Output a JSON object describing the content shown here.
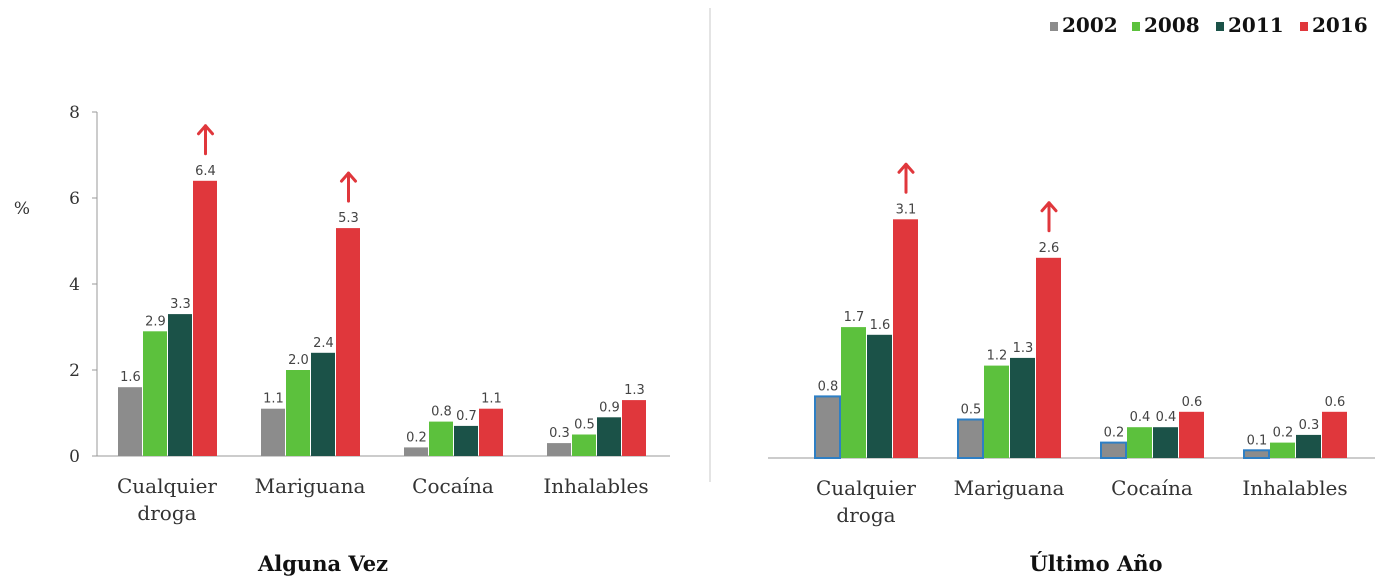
{
  "legend": [
    {
      "label": "2002",
      "color": "#8c8c8c"
    },
    {
      "label": "2008",
      "color": "#5cc13d"
    },
    {
      "label": "2011",
      "color": "#1b5248"
    },
    {
      "label": "2016",
      "color": "#e0373c"
    }
  ],
  "chart_data": [
    {
      "type": "bar",
      "title": "Alguna Vez",
      "ylabel": "%",
      "ylim": [
        0,
        8
      ],
      "yticks": [
        "0",
        "2",
        "4",
        "6",
        "8"
      ],
      "categories": [
        "Cualquier droga",
        "Mariguana",
        "Cocaína",
        "Inhalables"
      ],
      "category_lines": [
        [
          "Cualquier",
          "droga"
        ],
        [
          "Mariguana"
        ],
        [
          "Cocaína"
        ],
        [
          "Inhalables"
        ]
      ],
      "series": [
        {
          "name": "2002",
          "values": [
            1.6,
            1.1,
            0.2,
            0.3
          ],
          "labels": [
            "1.6",
            "1.1",
            "0.2",
            "0.3"
          ]
        },
        {
          "name": "2008",
          "values": [
            2.9,
            2.0,
            0.8,
            0.5
          ],
          "labels": [
            "2.9",
            "2.0",
            "0.8",
            "0.5"
          ]
        },
        {
          "name": "2011",
          "values": [
            3.3,
            2.4,
            0.7,
            0.9
          ],
          "labels": [
            "3.3",
            "2.4",
            "0.7",
            "0.9"
          ]
        },
        {
          "name": "2016",
          "values": [
            6.4,
            5.3,
            1.1,
            1.3
          ],
          "labels": [
            "6.4",
            "5.3",
            "1.1",
            "1.3"
          ]
        }
      ],
      "increase_arrows": [
        "Cualquier droga",
        "Mariguana"
      ]
    },
    {
      "type": "bar",
      "title": "Último Año",
      "ylim": [
        0,
        4.5
      ],
      "categories": [
        "Cualquier droga",
        "Mariguana",
        "Cocaína",
        "Inhalables"
      ],
      "category_lines": [
        [
          "Cualquier",
          "droga"
        ],
        [
          "Mariguana"
        ],
        [
          "Cocaína"
        ],
        [
          "Inhalables"
        ]
      ],
      "series": [
        {
          "name": "2002",
          "values": [
            0.8,
            0.5,
            0.2,
            0.1
          ],
          "labels": [
            "0.8",
            "0.5",
            "0.2",
            "0.1"
          ]
        },
        {
          "name": "2008",
          "values": [
            1.7,
            1.2,
            0.4,
            0.2
          ],
          "labels": [
            "1.7",
            "1.2",
            "0.4",
            "0.2"
          ]
        },
        {
          "name": "2011",
          "values": [
            1.6,
            1.3,
            0.4,
            0.3
          ],
          "labels": [
            "1.6",
            "1.3",
            "0.4",
            "0.3"
          ]
        },
        {
          "name": "2016",
          "values": [
            3.1,
            2.6,
            0.6,
            0.6
          ],
          "labels": [
            "3.1",
            "2.6",
            "0.6",
            "0.6"
          ]
        }
      ],
      "increase_arrows": [
        "Cualquier droga",
        "Mariguana"
      ]
    }
  ]
}
